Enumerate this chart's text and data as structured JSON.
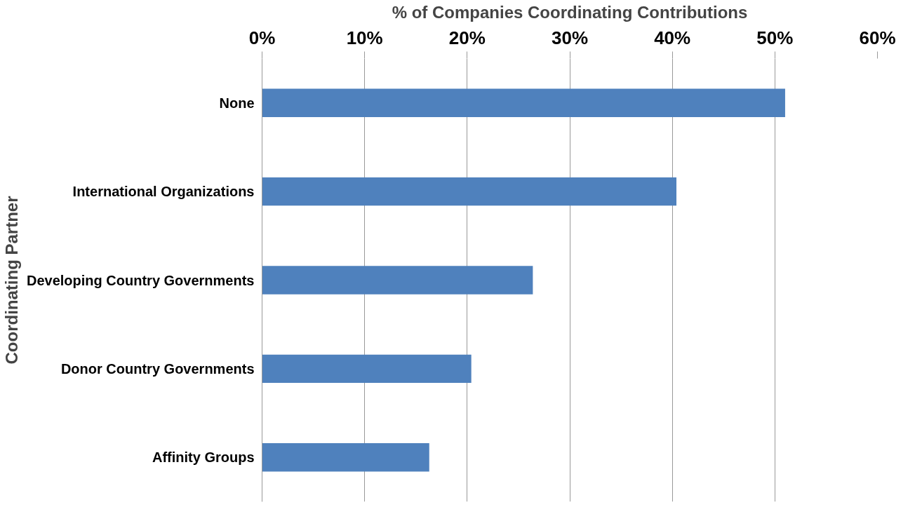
{
  "chart_data": {
    "type": "bar",
    "orientation": "horizontal",
    "xlabel": "% of Companies Coordinating Contributions",
    "ylabel": "Coordinating Partner",
    "categories": [
      "None",
      "International Organizations",
      "Developing Country Governments",
      "Donor Country Governments",
      "Affinity Groups"
    ],
    "values": [
      51,
      40.4,
      26.4,
      20.4,
      16.3
    ],
    "color": "#4f81bd",
    "xlim": [
      0,
      60
    ],
    "xticks": [
      {
        "value": 0,
        "label": "0%"
      },
      {
        "value": 10,
        "label": "10%"
      },
      {
        "value": 20,
        "label": "20%"
      },
      {
        "value": 30,
        "label": "30%"
      },
      {
        "value": 40,
        "label": "40%"
      },
      {
        "value": 50,
        "label": "50%"
      },
      {
        "value": 60,
        "label": "60%"
      }
    ],
    "grid": "x"
  }
}
